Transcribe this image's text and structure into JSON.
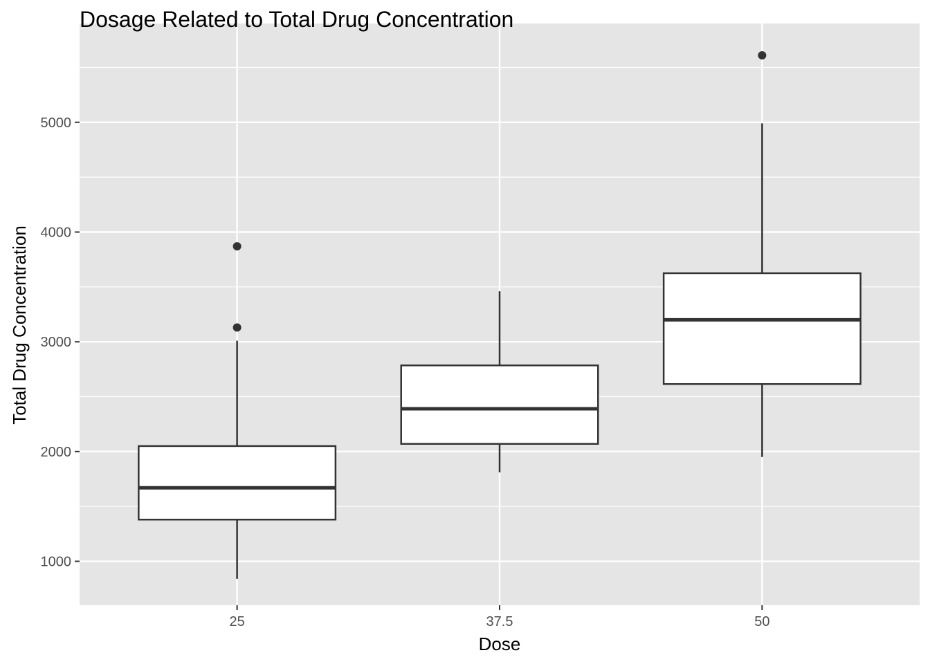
{
  "chart_data": {
    "type": "boxplot",
    "title": "Dosage Related to Total Drug Concentration",
    "xlabel": "Dose",
    "ylabel": "Total Drug Concentration",
    "categories": [
      "25",
      "37.5",
      "50"
    ],
    "y_ticks": [
      "1000",
      "2000",
      "3000",
      "4000",
      "5000"
    ],
    "ylim": [
      600,
      5900
    ],
    "grid": true,
    "boxes": [
      {
        "category": "25",
        "whisker_low": 840,
        "q1": 1380,
        "median": 1670,
        "q3": 2050,
        "whisker_high": 3010,
        "outliers": [
          3130,
          3870
        ]
      },
      {
        "category": "37.5",
        "whisker_low": 1810,
        "q1": 2070,
        "median": 2390,
        "q3": 2785,
        "whisker_high": 3460,
        "outliers": []
      },
      {
        "category": "50",
        "whisker_low": 1950,
        "q1": 2615,
        "median": 3200,
        "q3": 3625,
        "whisker_high": 4990,
        "outliers": [
          5610
        ]
      }
    ],
    "colors": {
      "panel_background": "#e5e5e5",
      "grid": "#ffffff",
      "box_fill": "#ffffff",
      "box_stroke": "#333333",
      "outlier": "#333333"
    }
  }
}
